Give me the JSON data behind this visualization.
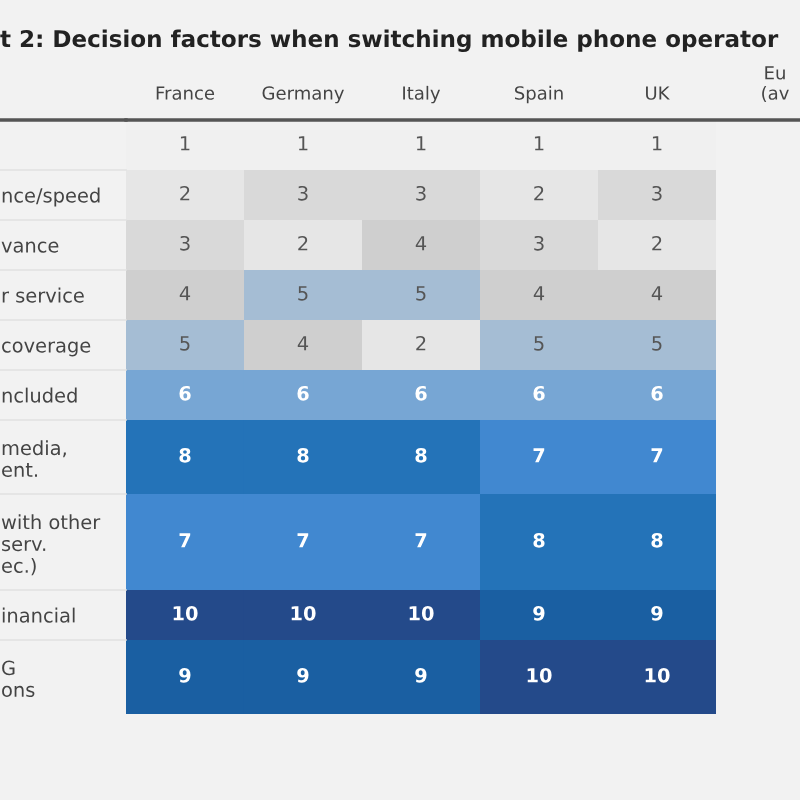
{
  "chart_data": {
    "type": "heatmap",
    "title": "t 2: Decision factors when switching mobile phone operator",
    "categories": [
      "France",
      "Germany",
      "Italy",
      "Spain",
      "UK",
      "Eu\n(av"
    ],
    "y_categories": [
      null,
      "nce/speed",
      "vance",
      "r service",
      "coverage",
      "ncluded",
      "media,\nent.",
      "with other\nserv.\nec.)",
      "inancial",
      "G\nons"
    ],
    "cells": [
      [
        1,
        1,
        1,
        1,
        1,
        null
      ],
      [
        2,
        3,
        3,
        2,
        3,
        null
      ],
      [
        3,
        2,
        4,
        3,
        2,
        null
      ],
      [
        4,
        5,
        5,
        4,
        4,
        null
      ],
      [
        5,
        4,
        2,
        5,
        5,
        null
      ],
      [
        6,
        6,
        6,
        6,
        6,
        null
      ],
      [
        8,
        8,
        8,
        7,
        7,
        null
      ],
      [
        7,
        7,
        7,
        8,
        8,
        null
      ],
      [
        10,
        10,
        10,
        9,
        9,
        null
      ],
      [
        9,
        9,
        9,
        10,
        10,
        null
      ]
    ],
    "cell_labels": [
      [
        "1",
        "1",
        "1",
        "1",
        "1",
        null
      ],
      [
        "2",
        "3",
        "3",
        "2",
        "3",
        null
      ],
      [
        "3",
        "2",
        "4",
        "3",
        "2",
        null
      ],
      [
        "4",
        "5",
        "5",
        "4",
        "4",
        null
      ],
      [
        "5",
        "4",
        "2",
        "5",
        "5",
        null
      ],
      [
        "6",
        "6",
        "6",
        "6",
        "6",
        null
      ],
      [
        "8",
        "8",
        "8",
        "7",
        "7",
        null
      ],
      [
        "7",
        "7",
        "7",
        "8",
        "8",
        null
      ],
      [
        "10",
        "10",
        "10",
        "9",
        "9",
        null
      ],
      [
        "9",
        "9",
        "9",
        "10",
        "10",
        null
      ]
    ],
    "colors": [
      "#f0f0f0",
      "#e6e6e6",
      "#d9d9d9",
      "#cfcfcf",
      "#a5bdd4",
      "#77a6d4",
      "#4188d0",
      "#2473b8",
      "#1a5fa2",
      "#244a8a"
    ],
    "grid": false
  }
}
